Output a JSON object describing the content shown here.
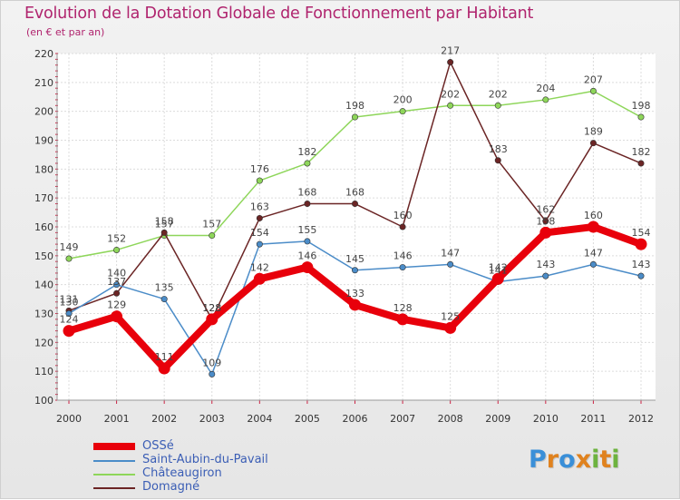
{
  "chart_data": {
    "type": "line",
    "title": "Evolution de la Dotation Globale de Fonctionnement par Habitant",
    "subtitle": "(en € et par an)",
    "x": [
      "2000",
      "2001",
      "2002",
      "2003",
      "2004",
      "2005",
      "2006",
      "2007",
      "2008",
      "2009",
      "2010",
      "2011",
      "2012"
    ],
    "ylim": [
      100,
      220
    ],
    "yticks": [
      100,
      110,
      120,
      130,
      140,
      150,
      160,
      170,
      180,
      190,
      200,
      210,
      220
    ],
    "series": [
      {
        "name": "OSSé",
        "color": "#e8000b",
        "values": [
          124,
          129,
          111,
          128,
          142,
          146,
          133,
          128,
          125,
          142,
          158,
          160,
          154
        ]
      },
      {
        "name": "Saint-Aubin-du-Pavail",
        "color": "#4b8cc8",
        "values": [
          130,
          140,
          135,
          109,
          154,
          155,
          145,
          146,
          147,
          141,
          143,
          147,
          143
        ]
      },
      {
        "name": "Châteaugiron",
        "color": "#8ed65a",
        "values": [
          149,
          152,
          157,
          157,
          176,
          182,
          198,
          200,
          202,
          202,
          204,
          207,
          198
        ]
      },
      {
        "name": "Domagné",
        "color": "#6b2525",
        "values": [
          131,
          137,
          158,
          128,
          163,
          168,
          168,
          160,
          217,
          183,
          162,
          189,
          182
        ]
      }
    ]
  },
  "logo": {
    "letters": [
      "P",
      "r",
      "o",
      "x",
      "i",
      "t",
      "i"
    ],
    "colors": [
      "#3a8fd8",
      "#e0821e",
      "#3a8fd8",
      "#e0821e",
      "#6db33f",
      "#e0821e",
      "#6db33f"
    ]
  }
}
